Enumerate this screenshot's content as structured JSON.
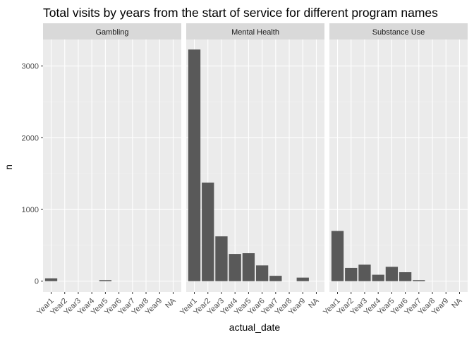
{
  "chart_data": {
    "type": "bar",
    "title": "Total visits by years from the start of service for different program names",
    "xlabel": "actual_date",
    "ylabel": "n",
    "ylim": [
      -150,
      3370
    ],
    "y_ticks": [
      0,
      1000,
      2000,
      3000
    ],
    "y_tick_labels": [
      "0",
      "1000",
      "2000",
      "3000"
    ],
    "categories": [
      "Year1",
      "Year2",
      "Year3",
      "Year4",
      "Year5",
      "Year6",
      "Year7",
      "Year8",
      "Year9",
      "NA"
    ],
    "grid": true,
    "facets": [
      {
        "name": "Gambling",
        "values": [
          40,
          0,
          0,
          0,
          15,
          0,
          0,
          0,
          0,
          0
        ]
      },
      {
        "name": "Mental Health",
        "values": [
          3230,
          1375,
          625,
          380,
          390,
          220,
          75,
          0,
          50,
          0
        ]
      },
      {
        "name": "Substance Use",
        "values": [
          700,
          185,
          230,
          90,
          200,
          125,
          15,
          0,
          0,
          0
        ]
      }
    ],
    "colors": {
      "bar": "#595959",
      "panel_bg": "#ebebeb",
      "strip_bg": "#d9d9d9",
      "grid_major": "#ffffff",
      "grid_minor": "#f2f2f2",
      "tick_text": "#4d4d4d",
      "strip_text": "#1a1a1a",
      "title_text": "#000000"
    }
  }
}
